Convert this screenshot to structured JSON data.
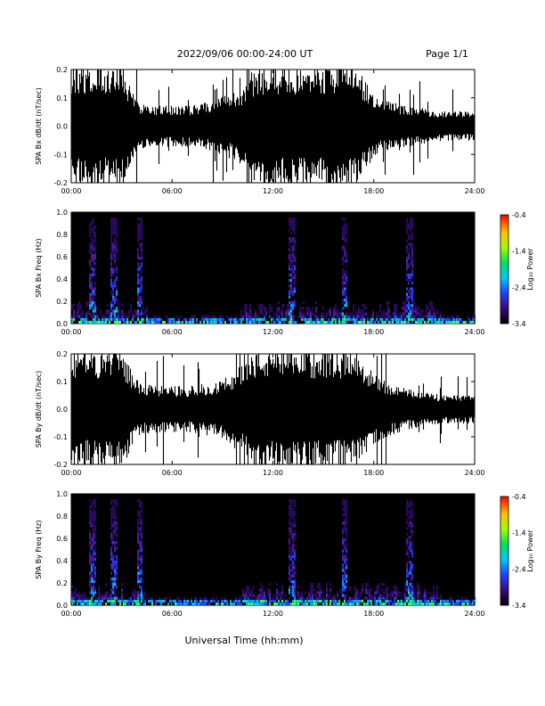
{
  "header": {
    "title": "2022/09/06  00:00-24:00 UT",
    "page": "Page 1/1"
  },
  "chart_data": [
    {
      "type": "line",
      "ylabel": "SPA Bx dB/dt (nT/sec)",
      "ylim": [
        -0.2,
        0.2
      ],
      "yticks": [
        "-0.2",
        "-0.1",
        "0.0",
        "0.1",
        "0.2"
      ],
      "xlim": [
        "00:00",
        "24:00"
      ],
      "xticks": [
        "00:00",
        "06:00",
        "12:00",
        "18:00",
        "24:00"
      ],
      "envelope_hours": [
        0,
        1,
        2,
        3,
        4,
        5,
        6,
        7,
        8,
        9,
        10,
        11,
        12,
        13,
        14,
        15,
        16,
        17,
        18,
        19,
        20,
        21,
        22,
        23,
        24
      ],
      "envelope_amplitude": [
        0.2,
        0.2,
        0.2,
        0.2,
        0.08,
        0.07,
        0.07,
        0.07,
        0.08,
        0.1,
        0.12,
        0.2,
        0.2,
        0.2,
        0.2,
        0.2,
        0.2,
        0.2,
        0.1,
        0.08,
        0.07,
        0.06,
        0.05,
        0.05,
        0.05
      ],
      "color": "#000000"
    },
    {
      "type": "heatmap",
      "ylabel": "SPA Bx Freq (Hz)",
      "ylim": [
        0.0,
        1.0
      ],
      "yticks": [
        "0.0",
        "0.2",
        "0.4",
        "0.6",
        "0.8",
        "1.0"
      ],
      "xlim": [
        "00:00",
        "24:00"
      ],
      "xticks": [
        "00:00",
        "06:00",
        "12:00",
        "18:00",
        "24:00"
      ],
      "colorbar": {
        "label": "Log₁₀ Power",
        "range": [
          -3.4,
          -0.4
        ],
        "ticks": [
          "-0.4",
          "-1.4",
          "-2.4",
          "-3.4"
        ]
      },
      "background_power": -3.4
    },
    {
      "type": "line",
      "ylabel": "SPA By dB/dt (nT/sec)",
      "ylim": [
        -0.2,
        0.2
      ],
      "yticks": [
        "-0.2",
        "-0.1",
        "0.0",
        "0.1",
        "0.2"
      ],
      "xlim": [
        "00:00",
        "24:00"
      ],
      "xticks": [
        "00:00",
        "06:00",
        "12:00",
        "18:00",
        "24:00"
      ],
      "envelope_hours": [
        0,
        1,
        2,
        3,
        4,
        5,
        6,
        7,
        8,
        9,
        10,
        11,
        12,
        13,
        14,
        15,
        16,
        17,
        18,
        19,
        20,
        21,
        22,
        23,
        24
      ],
      "envelope_amplitude": [
        0.2,
        0.2,
        0.2,
        0.2,
        0.09,
        0.08,
        0.08,
        0.08,
        0.09,
        0.1,
        0.15,
        0.2,
        0.2,
        0.2,
        0.2,
        0.2,
        0.2,
        0.2,
        0.12,
        0.09,
        0.07,
        0.06,
        0.05,
        0.05,
        0.05
      ],
      "color": "#000000"
    },
    {
      "type": "heatmap",
      "ylabel": "SPA By Freq (Hz)",
      "ylim": [
        0.0,
        1.0
      ],
      "yticks": [
        "0.0",
        "0.2",
        "0.4",
        "0.6",
        "0.8",
        "1.0"
      ],
      "xlim": [
        "00:00",
        "24:00"
      ],
      "xticks": [
        "00:00",
        "06:00",
        "12:00",
        "18:00",
        "24:00"
      ],
      "colorbar": {
        "label": "Log₁₀ Power",
        "range": [
          -3.4,
          -0.4
        ],
        "ticks": [
          "-0.4",
          "-1.4",
          "-2.4",
          "-3.4"
        ]
      },
      "background_power": -3.4
    }
  ],
  "xlabel": "Universal Time (hh:mm)"
}
